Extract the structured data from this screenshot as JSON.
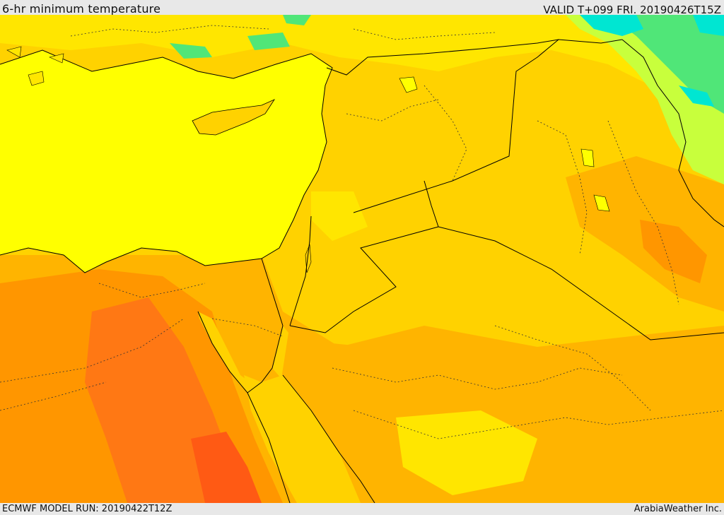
{
  "header": {
    "title": "6-hr minimum temperature",
    "valid_time": "VALID T+099 FRI. 20190426T15Z"
  },
  "footer": {
    "model_run": "ECMWF MODEL RUN: 20190422T12Z",
    "credit": "ArabiaWeather Inc."
  },
  "map": {
    "palette": {
      "sea": "#ffff00",
      "light_yellow": "#ffe600",
      "gold": "#ffd200",
      "orange_light": "#ffb400",
      "orange": "#ff9600",
      "orange_dark": "#ff7814",
      "red_orange": "#ff5a14",
      "yellow_green": "#c8ff3c",
      "green": "#50e678",
      "cyan": "#00e6d2",
      "boundary_line": "#000000"
    }
  }
}
